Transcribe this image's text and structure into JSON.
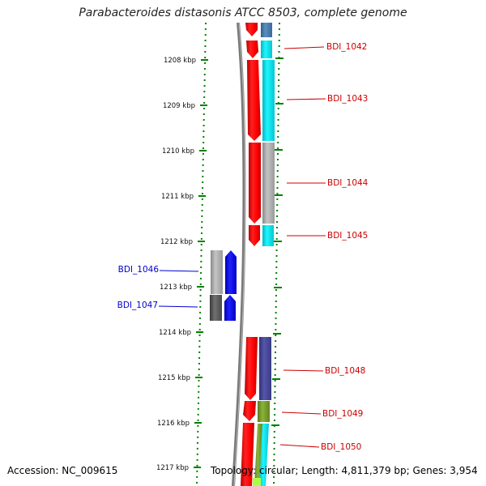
{
  "title": "Parabacteroides distasonis ATCC 8503, complete genome",
  "accession_text": "Accession: NC_009615",
  "topology_text": "Topology: circular; Length: 4,811,379 bp; Genes: 3,954",
  "tick_unit": "kbp",
  "ticks": [
    {
      "label": "1208 kbp"
    },
    {
      "label": "1209 kbp"
    },
    {
      "label": "1210 kbp"
    },
    {
      "label": "1211 kbp"
    },
    {
      "label": "1212 kbp"
    },
    {
      "label": "1213 kbp"
    },
    {
      "label": "1214 kbp"
    },
    {
      "label": "1215 kbp"
    },
    {
      "label": "1216 kbp"
    },
    {
      "label": "1217 kbp"
    }
  ],
  "genes": [
    {
      "name": "BDI_1042",
      "side": "right",
      "color": "#cc0000"
    },
    {
      "name": "BDI_1043",
      "side": "right",
      "color": "#cc0000"
    },
    {
      "name": "BDI_1044",
      "side": "right",
      "color": "#cc0000"
    },
    {
      "name": "BDI_1045",
      "side": "right",
      "color": "#cc0000"
    },
    {
      "name": "BDI_1046",
      "side": "left",
      "color": "#0000cc"
    },
    {
      "name": "BDI_1047",
      "side": "left",
      "color": "#0000cc"
    },
    {
      "name": "BDI_1048",
      "side": "right",
      "color": "#cc0000"
    },
    {
      "name": "BDI_1049",
      "side": "right",
      "color": "#cc0000"
    },
    {
      "name": "BDI_1050",
      "side": "right",
      "color": "#cc0000"
    }
  ],
  "colors": {
    "forward_strand": "#ff0000",
    "reverse_strand": "#0000ff",
    "backbone": "#7a7a7a",
    "tick": "#008000",
    "cyan": "#00e5ee",
    "steelblue": "#4a7fb0",
    "grey": "#b0b0b0",
    "darkgrey": "#606060",
    "slateblue": "#4d4d99",
    "olive": "#7aa02a",
    "lime": "#aaff44"
  }
}
